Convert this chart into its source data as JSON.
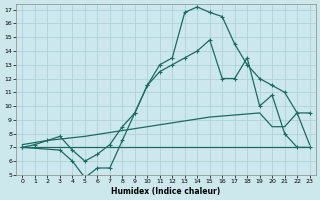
{
  "xlabel": "Humidex (Indice chaleur)",
  "xlim": [
    -0.5,
    23.5
  ],
  "ylim": [
    5,
    17.4
  ],
  "yticks": [
    5,
    6,
    7,
    8,
    9,
    10,
    11,
    12,
    13,
    14,
    15,
    16,
    17
  ],
  "xticks": [
    0,
    1,
    2,
    3,
    4,
    5,
    6,
    7,
    8,
    9,
    10,
    11,
    12,
    13,
    14,
    15,
    16,
    17,
    18,
    19,
    20,
    21,
    22,
    23
  ],
  "bg_color": "#cde8ec",
  "line_color": "#1a6b60",
  "grid_color": "#aacdd4",
  "line1_x": [
    0,
    1,
    2,
    3,
    4,
    5,
    6,
    7,
    8,
    9,
    10,
    11,
    12,
    13,
    14,
    15,
    16,
    17,
    18,
    19,
    20,
    21,
    22,
    23
  ],
  "line1_y": [
    7.0,
    7.2,
    7.5,
    7.8,
    6.8,
    6.0,
    6.5,
    7.2,
    8.5,
    9.5,
    11.5,
    13.0,
    13.5,
    16.8,
    17.2,
    16.8,
    16.5,
    14.5,
    13.0,
    12.0,
    11.5,
    11.0,
    9.5,
    9.5
  ],
  "line2_x": [
    0,
    2,
    5,
    10,
    15,
    19,
    20,
    21,
    22,
    23
  ],
  "line2_y": [
    7.2,
    7.5,
    7.8,
    8.5,
    9.2,
    9.5,
    8.5,
    8.5,
    9.5,
    7.2
  ],
  "line3_x": [
    0,
    3,
    4,
    5,
    6,
    7,
    8,
    9,
    10,
    11,
    12,
    13,
    14,
    15,
    16,
    17,
    18,
    19,
    20,
    21,
    22,
    23
  ],
  "line3_y": [
    7.0,
    6.8,
    6.0,
    4.8,
    5.5,
    5.5,
    7.5,
    9.5,
    11.5,
    12.5,
    13.0,
    13.5,
    14.0,
    14.8,
    12.0,
    12.0,
    13.5,
    10.0,
    10.8,
    8.0,
    7.0,
    7.0
  ],
  "line4_x": [
    0,
    5,
    10,
    15,
    20,
    23
  ],
  "line4_y": [
    7.0,
    7.0,
    7.0,
    7.0,
    7.0,
    7.0
  ]
}
